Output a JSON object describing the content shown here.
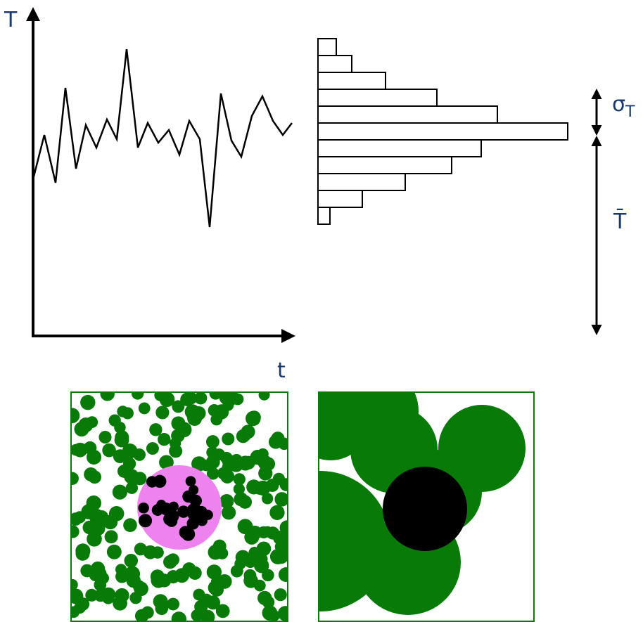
{
  "labels": {
    "y_axis": "T",
    "x_axis": "t",
    "sigma": "σ",
    "sigma_sub": "T",
    "mean": "T̄"
  }
}
